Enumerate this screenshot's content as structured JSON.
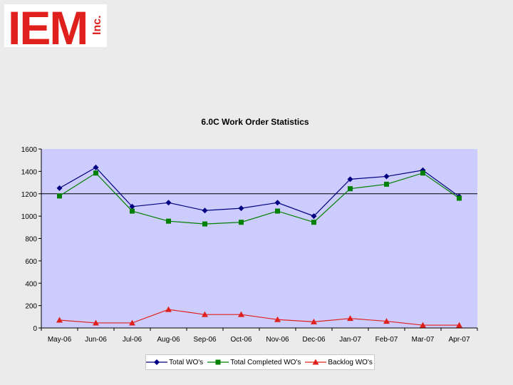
{
  "logo": {
    "main": "IEM",
    "sub": "Inc."
  },
  "chart_data": {
    "type": "line",
    "title": "6.0C Work Order Statistics",
    "xlabel": "",
    "ylabel": "",
    "ylim": [
      0,
      1600
    ],
    "yticks": [
      0,
      200,
      400,
      600,
      800,
      1000,
      1200,
      1400,
      1600
    ],
    "categories": [
      "May-06",
      "Jun-06",
      "Jul-06",
      "Aug-06",
      "Sep-06",
      "Oct-06",
      "Nov-06",
      "Dec-06",
      "Jan-07",
      "Feb-07",
      "Mar-07",
      "Apr-07"
    ],
    "reference_line": 1200,
    "grid": false,
    "legend_position": "bottom",
    "series": [
      {
        "name": "Total WO's",
        "color": "#000080",
        "marker": "diamond",
        "values": [
          1250,
          1435,
          1085,
          1120,
          1050,
          1070,
          1120,
          1000,
          1330,
          1355,
          1410,
          1175
        ]
      },
      {
        "name": "Total Completed WO's",
        "color": "#008000",
        "marker": "square",
        "values": [
          1180,
          1385,
          1045,
          955,
          930,
          945,
          1045,
          945,
          1245,
          1285,
          1385,
          1160
        ]
      },
      {
        "name": "Backlog WO's",
        "color": "#e0201c",
        "marker": "triangle",
        "values": [
          70,
          45,
          45,
          165,
          120,
          120,
          75,
          55,
          85,
          60,
          25,
          25
        ]
      }
    ]
  }
}
